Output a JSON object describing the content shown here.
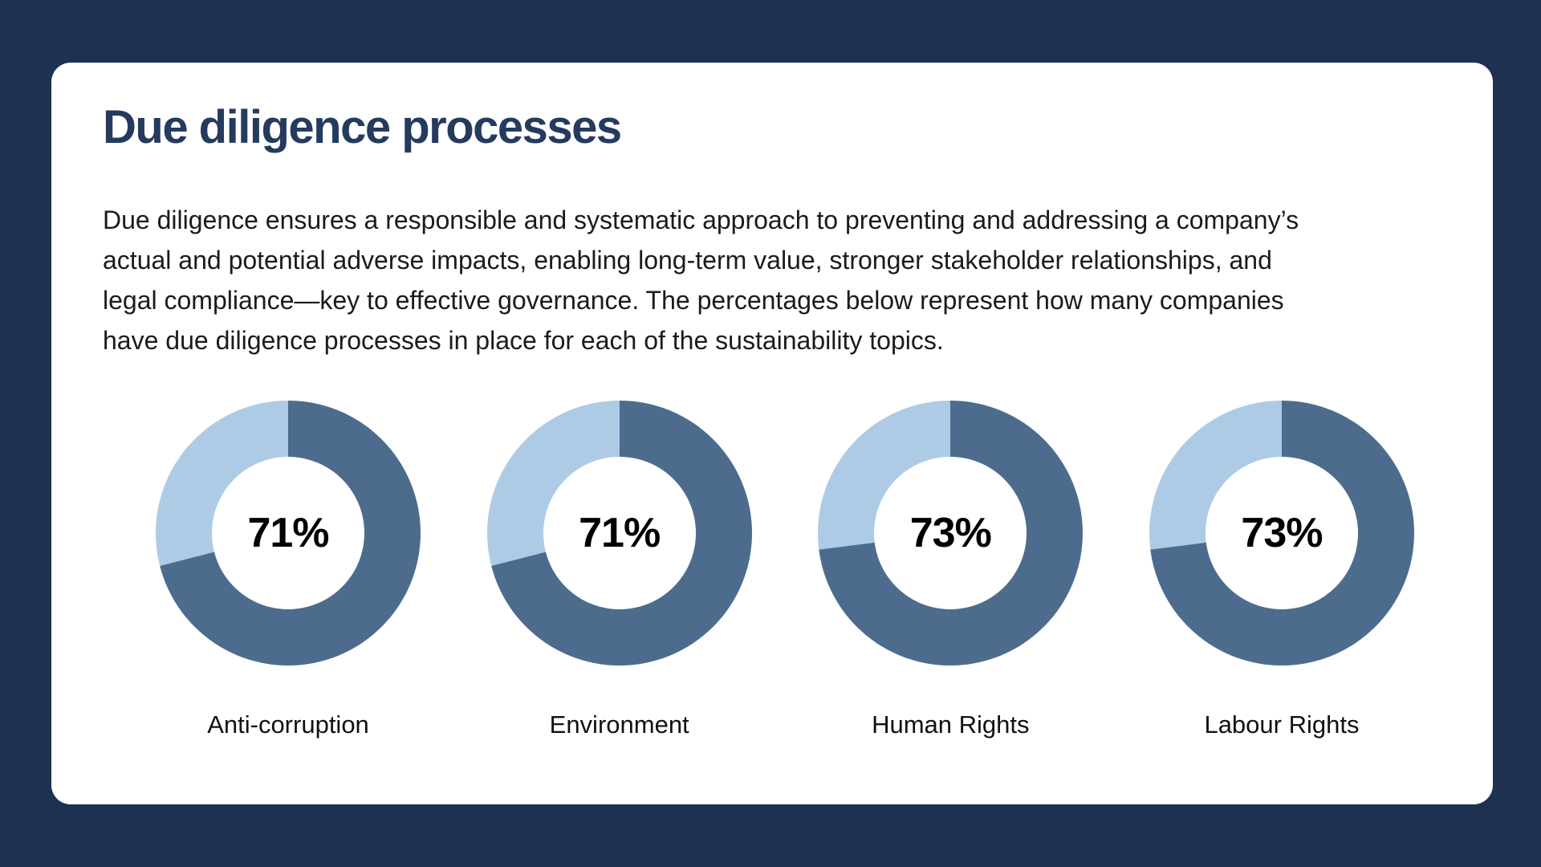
{
  "window": {
    "background_color": "#1F3150",
    "card_color": "#FFFFFF"
  },
  "header": {
    "title": "Due diligence processes",
    "title_color": "#253B5E"
  },
  "description": {
    "lines": [
      "Due diligence ensures a responsible and systematic approach to preventing and addressing a company’s",
      "actual and potential adverse impacts, enabling long-term value, stronger stakeholder relationships, and",
      "legal compliance—key to effective governance. The percentages below represent how many companies",
      "have due diligence processes in place for each of the sustainability topics."
    ]
  },
  "chart_data": {
    "type": "pie",
    "variant": "donut",
    "title": "Due diligence processes",
    "unit": "%",
    "categories": [
      "Anti-corruption",
      "Environment",
      "Human Rights",
      "Labour Rights"
    ],
    "values": [
      71,
      71,
      73,
      73
    ],
    "value_labels": [
      "71%",
      "71%",
      "73%",
      "73%"
    ],
    "segment_start": "top",
    "direction": "clockwise",
    "colors": {
      "filled": "#4D6C8D",
      "remainder": "#AECBE6"
    },
    "legend": "none"
  }
}
